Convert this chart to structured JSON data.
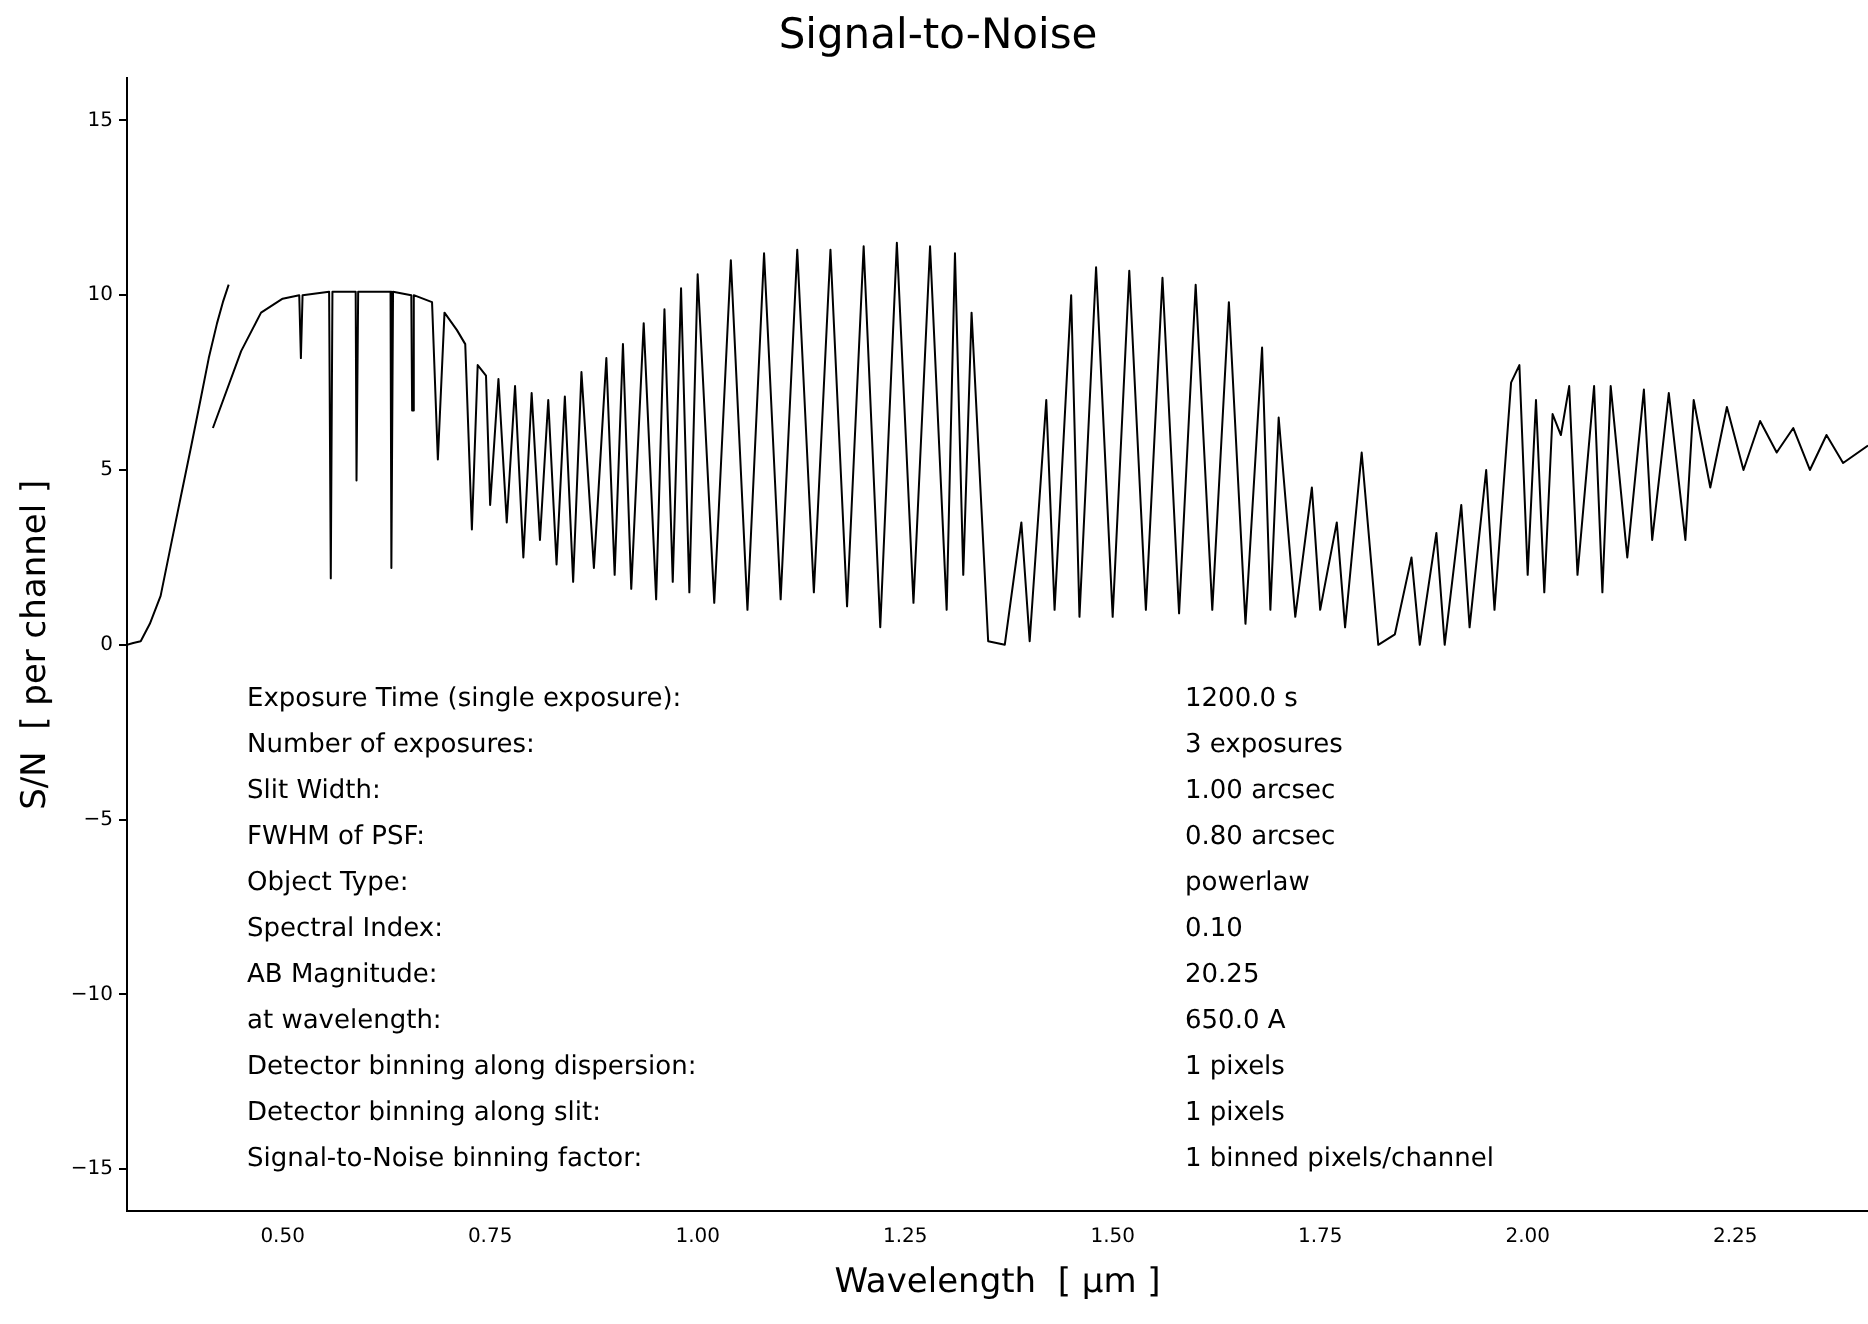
{
  "chart_data": {
    "type": "line",
    "title": "Signal-to-Noise",
    "xlabel": "Wavelength  [ μm ]",
    "ylabel": "S/N  [ per channel ]",
    "xlim": [
      0.3125,
      2.41
    ],
    "ylim": [
      -16.2,
      16.2
    ],
    "xticks": [
      {
        "value": 0.5,
        "label": "0.50"
      },
      {
        "value": 0.75,
        "label": "0.75"
      },
      {
        "value": 1.0,
        "label": "1.00"
      },
      {
        "value": 1.25,
        "label": "1.25"
      },
      {
        "value": 1.5,
        "label": "1.50"
      },
      {
        "value": 1.75,
        "label": "1.75"
      },
      {
        "value": 2.0,
        "label": "2.00"
      },
      {
        "value": 2.25,
        "label": "2.25"
      }
    ],
    "yticks": [
      {
        "value": -15,
        "label": "−15"
      },
      {
        "value": -10,
        "label": "−10"
      },
      {
        "value": -5,
        "label": "−5"
      },
      0,
      5,
      10,
      15
    ],
    "grid": false,
    "legend": false,
    "marker": "none",
    "line_style": "solid",
    "series": [
      {
        "color": "#000000",
        "x": [
          0.3125,
          0.32,
          0.329,
          0.34,
          0.353,
          0.365,
          0.377,
          0.39,
          0.401,
          0.411,
          0.421,
          0.428,
          0.435
        ],
        "values": [
          0.0,
          0.05,
          0.1,
          0.6,
          1.4,
          2.8,
          4.2,
          5.7,
          7.0,
          8.2,
          9.2,
          9.8,
          10.3
        ]
      },
      {
        "color": "#000000",
        "x": [
          0.416,
          0.45,
          0.474,
          0.5,
          0.52,
          0.522,
          0.524,
          0.556,
          0.558,
          0.56,
          0.588,
          0.589,
          0.591,
          0.63,
          0.631,
          0.633,
          0.655,
          0.656,
          0.658,
          0.68,
          0.687,
          0.695,
          0.71,
          0.72,
          0.728,
          0.735,
          0.745,
          0.75,
          0.76,
          0.77,
          0.78,
          0.79,
          0.8,
          0.81,
          0.82,
          0.83,
          0.84,
          0.85,
          0.86,
          0.875,
          0.89,
          0.9,
          0.91,
          0.92,
          0.935,
          0.95,
          0.96,
          0.97,
          0.98,
          0.99,
          1.0,
          1.02,
          1.04,
          1.06,
          1.08,
          1.1,
          1.12,
          1.14,
          1.16,
          1.18,
          1.2,
          1.22,
          1.24,
          1.26,
          1.28,
          1.3,
          1.31,
          1.32,
          1.33,
          1.35,
          1.37,
          1.39,
          1.4,
          1.42,
          1.43,
          1.45,
          1.46,
          1.48,
          1.5,
          1.52,
          1.54,
          1.56,
          1.58,
          1.6,
          1.62,
          1.64,
          1.66,
          1.68,
          1.69,
          1.7,
          1.72,
          1.74,
          1.75,
          1.77,
          1.78,
          1.8,
          1.82,
          1.84,
          1.86,
          1.87,
          1.89,
          1.9,
          1.92,
          1.93,
          1.95,
          1.96,
          1.98,
          1.99,
          2.0,
          2.01,
          2.02,
          2.03,
          2.04,
          2.05,
          2.06,
          2.08,
          2.09,
          2.1,
          2.12,
          2.14,
          2.15,
          2.17,
          2.19,
          2.2,
          2.22,
          2.24,
          2.26,
          2.28,
          2.3,
          2.32,
          2.34,
          2.36,
          2.38,
          2.41
        ],
        "values": [
          6.2,
          8.4,
          9.5,
          9.9,
          10.0,
          8.2,
          10.0,
          10.1,
          1.9,
          10.1,
          10.1,
          4.7,
          10.1,
          10.1,
          2.2,
          10.1,
          10.0,
          6.7,
          10.0,
          9.8,
          5.3,
          9.5,
          9.0,
          8.6,
          3.3,
          8.0,
          7.7,
          4.0,
          7.6,
          3.5,
          7.4,
          2.5,
          7.2,
          3.0,
          7.0,
          2.3,
          7.1,
          1.8,
          7.8,
          2.2,
          8.2,
          2.0,
          8.6,
          1.6,
          9.2,
          1.3,
          9.6,
          1.8,
          10.2,
          1.5,
          10.6,
          1.2,
          11.0,
          1.0,
          11.2,
          1.3,
          11.3,
          1.5,
          11.3,
          1.1,
          11.4,
          0.5,
          11.5,
          1.2,
          11.4,
          1.0,
          11.2,
          2.0,
          9.5,
          0.1,
          0.0,
          3.5,
          0.1,
          7.0,
          1.0,
          10.0,
          0.8,
          10.8,
          0.8,
          10.7,
          1.0,
          10.5,
          0.9,
          10.3,
          1.0,
          9.8,
          0.6,
          8.5,
          1.0,
          6.5,
          0.8,
          4.5,
          1.0,
          3.5,
          0.5,
          5.5,
          0.0,
          0.3,
          2.5,
          0.0,
          3.2,
          0.0,
          4.0,
          0.5,
          5.0,
          1.0,
          7.5,
          8.0,
          2.0,
          7.0,
          1.5,
          6.6,
          6.0,
          7.4,
          2.0,
          7.4,
          1.5,
          7.4,
          2.5,
          7.3,
          3.0,
          7.2,
          3.0,
          7.0,
          4.5,
          6.8,
          5.0,
          6.4,
          5.5,
          6.2,
          5.0,
          6.0,
          5.2,
          5.7
        ]
      }
    ],
    "annotations": [
      "Exposure Time (single exposure):",
      "1200.0 s",
      "Number of exposures:",
      "3 exposures",
      "Slit Width:",
      "1.00 arcsec",
      "FWHM of PSF:",
      "0.80 arcsec",
      "Object Type:",
      "powerlaw",
      "Spectral Index:",
      "0.10",
      "AB Magnitude:",
      "20.25",
      "at wavelength:",
      "650.0 A",
      "Detector binning along dispersion:",
      "1 pixels",
      "Detector binning along slit:",
      "1 pixels",
      "Signal-to-Noise binning factor:",
      "1 binned pixels/channel"
    ]
  }
}
